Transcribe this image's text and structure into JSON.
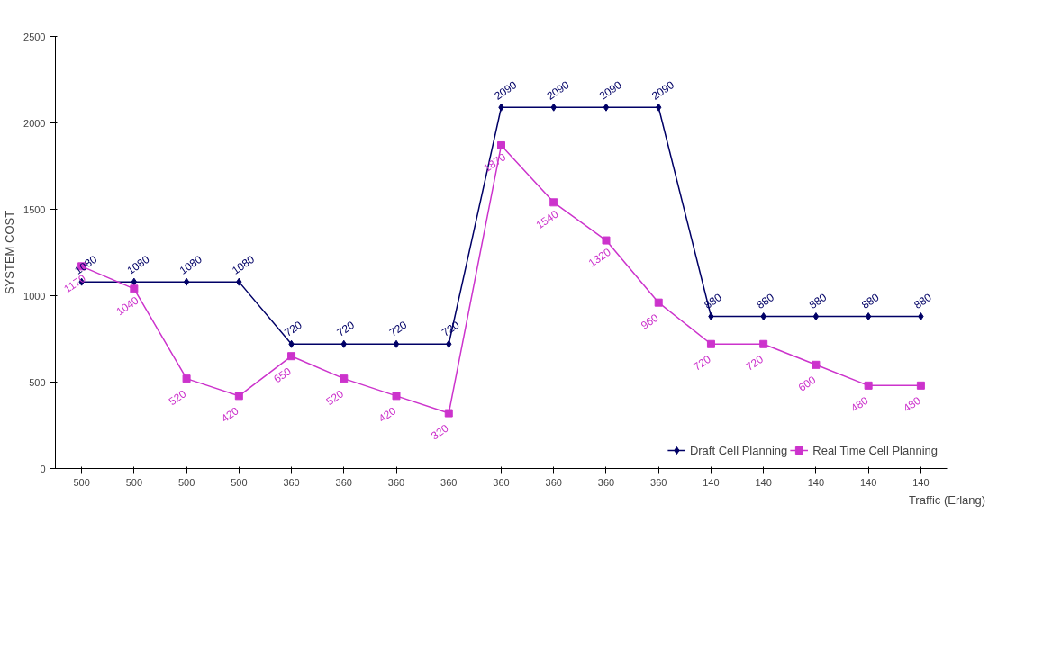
{
  "chart_data": {
    "type": "line",
    "xlabel": "Traffic (Erlang)",
    "ylabel": "SYSTEM COST",
    "categories": [
      "500",
      "500",
      "500",
      "500",
      "360",
      "360",
      "360",
      "360",
      "360",
      "360",
      "360",
      "360",
      "140",
      "140",
      "140",
      "140",
      "140"
    ],
    "series": [
      {
        "name": "Draft Cell Planning",
        "color": "#000066",
        "marker": "diamond",
        "values": [
          1080,
          1080,
          1080,
          1080,
          720,
          720,
          720,
          720,
          2090,
          2090,
          2090,
          2090,
          880,
          880,
          880,
          880,
          880
        ]
      },
      {
        "name": "Real Time Cell Planning",
        "color": "#cc33cc",
        "marker": "square",
        "values": [
          1170,
          1040,
          520,
          420,
          650,
          520,
          420,
          320,
          1870,
          1540,
          1320,
          960,
          720,
          720,
          600,
          480,
          480
        ]
      }
    ],
    "ylim": [
      0,
      2500
    ],
    "yticks": [
      0,
      500,
      1000,
      1500,
      2000,
      2500
    ],
    "data_labels": true,
    "grid": false,
    "legend": "bottom right"
  }
}
